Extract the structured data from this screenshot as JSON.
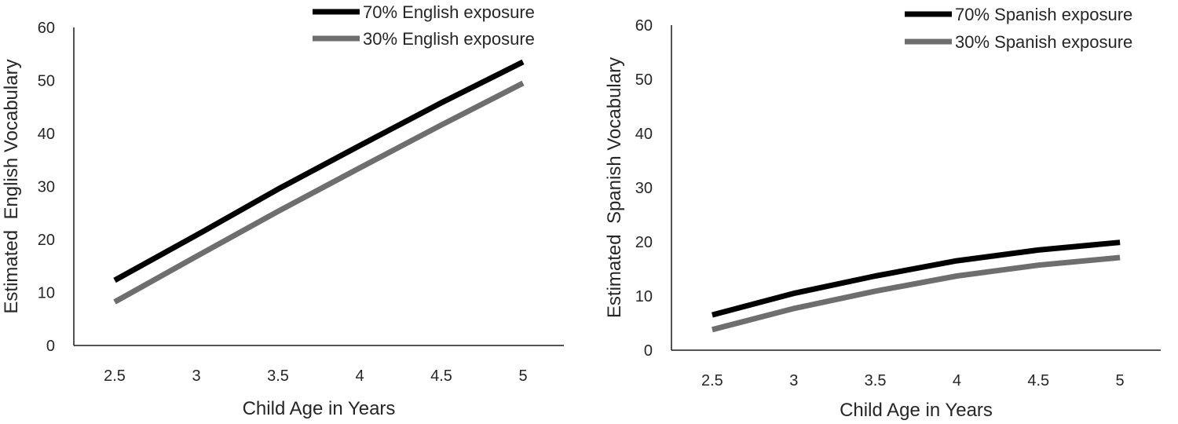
{
  "chart_data": [
    {
      "type": "line",
      "title": "",
      "xlabel": "Child Age in Years",
      "ylabel": "Estimated  English Vocabulary",
      "x": [
        2.5,
        3,
        3.5,
        4,
        4.5,
        5
      ],
      "x_tick_labels": [
        "2.5",
        "3",
        "3.5",
        "4",
        "4.5",
        "5"
      ],
      "ylim": [
        0,
        60
      ],
      "y_ticks": [
        0,
        10,
        20,
        30,
        40,
        50,
        60
      ],
      "grid": false,
      "legend_position": "top-right",
      "series": [
        {
          "name": "70% English exposure",
          "color": "#000000",
          "values": [
            12.3,
            20.8,
            29.5,
            37.7,
            45.8,
            53.5
          ]
        },
        {
          "name": "30% English exposure",
          "color": "#6e6e6e",
          "values": [
            8.2,
            16.8,
            25.3,
            33.5,
            41.6,
            49.5
          ]
        }
      ]
    },
    {
      "type": "line",
      "title": "",
      "xlabel": "Child Age in Years",
      "ylabel": "Estimated  Spanish Vocabulary",
      "x": [
        2.5,
        3,
        3.5,
        4,
        4.5,
        5
      ],
      "x_tick_labels": [
        "2.5",
        "3",
        "3.5",
        "4",
        "4.5",
        "5"
      ],
      "ylim": [
        0,
        60
      ],
      "y_ticks": [
        0,
        10,
        20,
        30,
        40,
        50,
        60
      ],
      "grid": false,
      "legend_position": "top-right",
      "series": [
        {
          "name": "70% Spanish exposure",
          "color": "#000000",
          "values": [
            6.5,
            10.5,
            13.7,
            16.5,
            18.5,
            19.9
          ]
        },
        {
          "name": "30% Spanish exposure",
          "color": "#6e6e6e",
          "values": [
            3.8,
            7.7,
            10.9,
            13.7,
            15.7,
            17.1
          ]
        }
      ]
    }
  ]
}
